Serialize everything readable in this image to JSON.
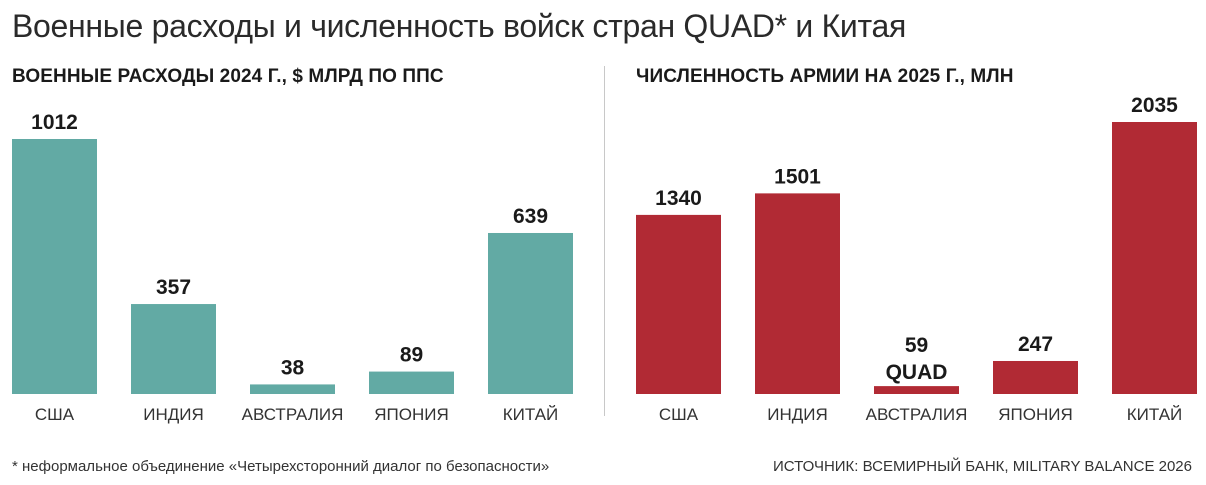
{
  "title": "Военные расходы и численность войск стран QUAD* и Китая",
  "footnote": "* неформальное объединение «Четырехсторонний диалог по безопасности»",
  "source": "ИСТОЧНИК: ВСЕМИРНЫЙ БАНК, MILITARY BALANCE 2026",
  "colors": {
    "spending": "#62aaa4",
    "army": "#b12a34"
  },
  "chart_data": [
    {
      "type": "bar",
      "title": "ВОЕННЫЕ РАСХОДЫ 2024 Г., $ МЛРД ПО ППС",
      "categories": [
        "США",
        "ИНДИЯ",
        "АВСТРАЛИЯ",
        "ЯПОНИЯ",
        "КИТАЙ"
      ],
      "values": [
        1012,
        357,
        38,
        89,
        639
      ],
      "data_labels": [
        "1012",
        "357",
        "38",
        "89",
        "639"
      ],
      "ylim": [
        0,
        1012
      ],
      "color": "#62aaa4",
      "grid": false,
      "legend": "none"
    },
    {
      "type": "bar",
      "title": "ЧИСЛЕННОСТЬ АРМИИ НА 2025 Г., МЛН",
      "categories": [
        "США",
        "ИНДИЯ",
        "АВСТРАЛИЯ",
        "ЯПОНИЯ",
        "КИТАЙ"
      ],
      "values": [
        1340,
        1501,
        59,
        247,
        2035
      ],
      "data_labels": [
        "1340",
        "1501",
        "59",
        "247",
        "2035"
      ],
      "annotation": "QUAD",
      "ylim": [
        0,
        2035
      ],
      "color": "#b12a34",
      "grid": false,
      "legend": "none"
    }
  ]
}
